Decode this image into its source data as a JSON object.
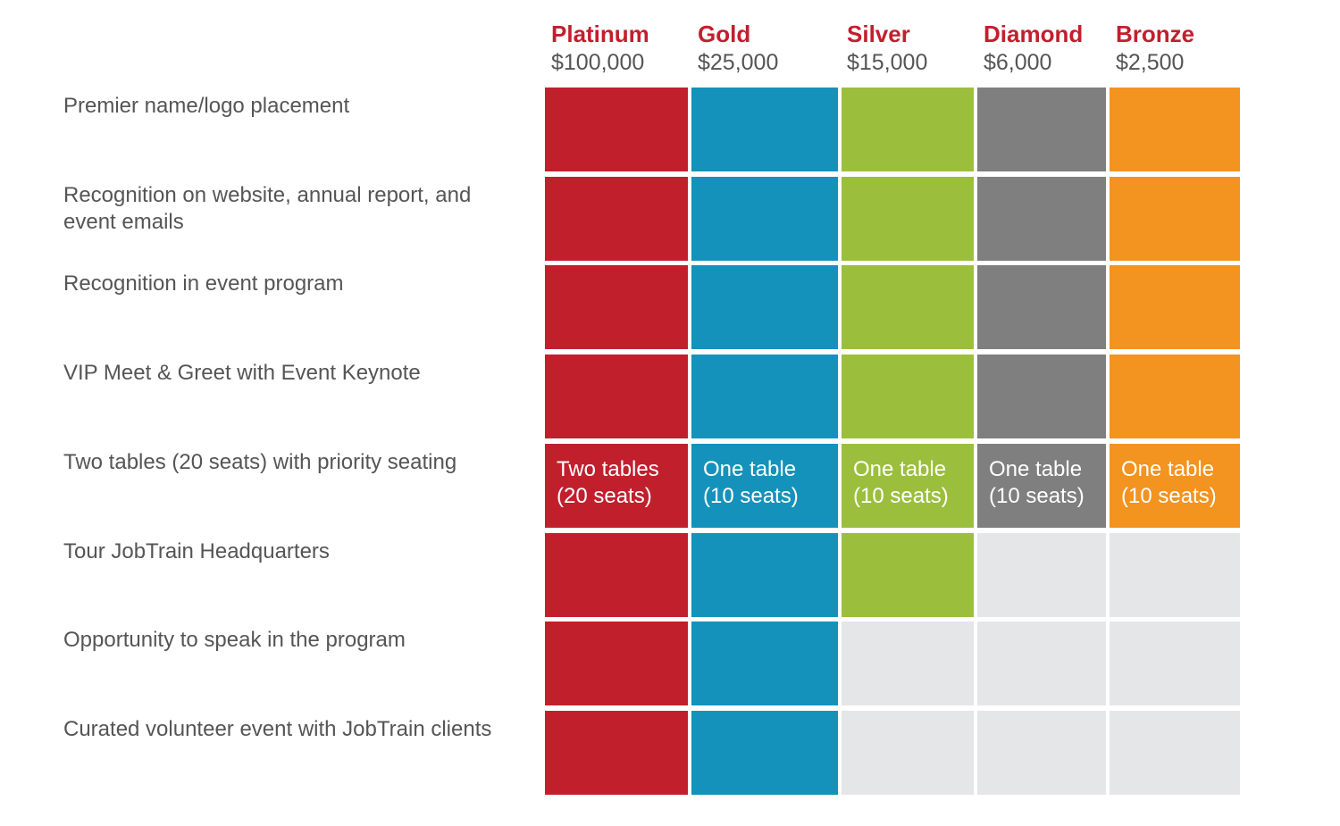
{
  "tiers": [
    {
      "name": "Platinum",
      "price": "$100,000",
      "color": "#c21f2d"
    },
    {
      "name": "Gold",
      "price": "$25,000",
      "color": "#1592bb"
    },
    {
      "name": "Silver",
      "price": "$15,000",
      "color": "#9bbf3c"
    },
    {
      "name": "Diamond",
      "price": "$6,000",
      "color": "#7f7f7f"
    },
    {
      "name": "Bronze",
      "price": "$2,500",
      "color": "#f39320"
    }
  ],
  "empty_color": "#e5e6e8",
  "benefits": [
    {
      "label": "Premier name/logo placement",
      "included": [
        true,
        true,
        true,
        true,
        true
      ]
    },
    {
      "label": "Recognition on website, annual report, and event emails",
      "included": [
        true,
        true,
        true,
        true,
        true
      ]
    },
    {
      "label": "Recognition in event program",
      "included": [
        true,
        true,
        true,
        true,
        true
      ]
    },
    {
      "label": "VIP Meet & Greet with Event Keynote",
      "included": [
        true,
        true,
        true,
        true,
        true
      ]
    },
    {
      "label": "Two tables (20 seats) with priority seating",
      "included": [
        true,
        true,
        true,
        true,
        true
      ],
      "cell_text": [
        [
          "Two tables",
          "(20 seats)"
        ],
        [
          "One table",
          "(10 seats)"
        ],
        [
          "One table",
          "(10 seats)"
        ],
        [
          "One table",
          "(10 seats)"
        ],
        [
          "One table",
          "(10 seats)"
        ]
      ]
    },
    {
      "label": "Tour JobTrain Headquarters",
      "included": [
        true,
        true,
        true,
        false,
        false
      ]
    },
    {
      "label": "Opportunity to speak in the program",
      "included": [
        true,
        true,
        false,
        false,
        false
      ]
    },
    {
      "label": "Curated volunteer event with JobTrain clients",
      "included": [
        true,
        true,
        false,
        false,
        false
      ]
    }
  ]
}
